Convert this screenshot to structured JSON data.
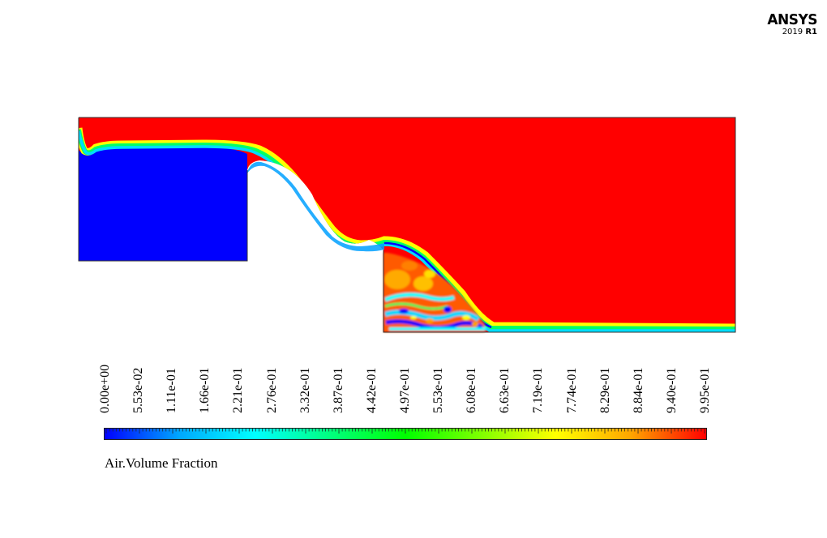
{
  "logo": {
    "brand": "ANSYS",
    "year": "2019",
    "release": "R1"
  },
  "legend": {
    "title": "Air.Volume Fraction",
    "min": 0.0,
    "max": 0.995,
    "tick_labels": [
      "0.00e+00",
      "5.53e-02",
      "1.11e-01",
      "1.66e-01",
      "2.21e-01",
      "2.76e-01",
      "3.32e-01",
      "3.87e-01",
      "4.42e-01",
      "4.97e-01",
      "5.53e-01",
      "6.08e-01",
      "6.63e-01",
      "7.19e-01",
      "7.74e-01",
      "8.29e-01",
      "8.84e-01",
      "9.40e-01",
      "9.95e-01"
    ],
    "colormap": [
      "#0000ff",
      "#00a8ff",
      "#00ffff",
      "#00ff7f",
      "#00ff00",
      "#7fff00",
      "#ffff00",
      "#ffa500",
      "#ff0000"
    ]
  },
  "colors": {
    "air": "#ff0000",
    "water": "#0000ff",
    "background": "#ffffff"
  }
}
